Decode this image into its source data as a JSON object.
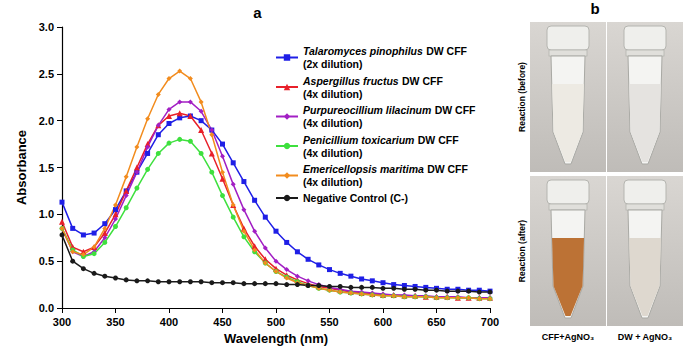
{
  "chart_data": {
    "type": "line",
    "title": "a",
    "x_label": "Wavelength (nm)",
    "y_label": "Absorbance",
    "x": [
      300,
      310,
      320,
      330,
      340,
      350,
      360,
      370,
      380,
      390,
      400,
      410,
      420,
      430,
      440,
      450,
      460,
      470,
      480,
      490,
      500,
      510,
      520,
      530,
      540,
      550,
      560,
      570,
      580,
      590,
      600,
      610,
      620,
      630,
      640,
      650,
      660,
      670,
      680,
      690,
      700
    ],
    "xlim": [
      300,
      700
    ],
    "xticks": [
      300,
      350,
      400,
      450,
      500,
      550,
      600,
      650,
      700
    ],
    "ylim": [
      0,
      3
    ],
    "yticks": [
      {
        "value": 0,
        "label": "0.0"
      },
      {
        "value": 0.5,
        "label": "0.5"
      },
      {
        "value": 1,
        "label": "1.0"
      },
      {
        "value": 1.5,
        "label": "1.5"
      },
      {
        "value": 2,
        "label": "2.0"
      },
      {
        "value": 2.5,
        "label": "2.5"
      },
      {
        "value": 3,
        "label": "3.0"
      }
    ],
    "grid": false,
    "legend": "upper right",
    "series": [
      {
        "name": "Talaromyces pinophilus DW CFF (2x dilution)",
        "color": "#1f1fe6",
        "marker": "square",
        "values": [
          1.13,
          0.85,
          0.78,
          0.8,
          0.9,
          1.05,
          1.25,
          1.45,
          1.65,
          1.85,
          1.97,
          2.03,
          2.05,
          2.0,
          1.9,
          1.75,
          1.55,
          1.35,
          1.15,
          0.97,
          0.82,
          0.7,
          0.6,
          0.52,
          0.46,
          0.41,
          0.37,
          0.34,
          0.31,
          0.29,
          0.27,
          0.25,
          0.24,
          0.23,
          0.22,
          0.21,
          0.2,
          0.2,
          0.19,
          0.19,
          0.18
        ]
      },
      {
        "name": "Aspergillus fructus DW CFF (4x dilution)",
        "color": "#e8202a",
        "marker": "triangle",
        "values": [
          0.92,
          0.65,
          0.6,
          0.65,
          0.8,
          1.0,
          1.25,
          1.5,
          1.75,
          1.95,
          2.05,
          2.08,
          2.05,
          1.9,
          1.65,
          1.38,
          1.1,
          0.85,
          0.66,
          0.52,
          0.42,
          0.35,
          0.3,
          0.26,
          0.23,
          0.21,
          0.19,
          0.17,
          0.16,
          0.15,
          0.14,
          0.14,
          0.13,
          0.13,
          0.12,
          0.12,
          0.12,
          0.11,
          0.11,
          0.11,
          0.11
        ]
      },
      {
        "name": "Purpureocillium lilacinum DW CFF (4x dilution)",
        "color": "#a21fc4",
        "marker": "diamond",
        "values": [
          0.85,
          0.6,
          0.55,
          0.6,
          0.75,
          0.95,
          1.2,
          1.45,
          1.72,
          1.95,
          2.12,
          2.2,
          2.2,
          2.1,
          1.9,
          1.62,
          1.32,
          1.05,
          0.82,
          0.64,
          0.5,
          0.41,
          0.34,
          0.29,
          0.25,
          0.22,
          0.2,
          0.18,
          0.17,
          0.16,
          0.15,
          0.14,
          0.14,
          0.13,
          0.13,
          0.12,
          0.12,
          0.12,
          0.11,
          0.11,
          0.11
        ]
      },
      {
        "name": "Penicillium toxicarium DW CFF (4x dilution)",
        "color": "#3ee03e",
        "marker": "circle",
        "values": [
          0.85,
          0.62,
          0.55,
          0.58,
          0.7,
          0.87,
          1.07,
          1.28,
          1.48,
          1.65,
          1.76,
          1.8,
          1.78,
          1.65,
          1.45,
          1.2,
          0.97,
          0.76,
          0.6,
          0.48,
          0.39,
          0.33,
          0.28,
          0.24,
          0.21,
          0.19,
          0.17,
          0.16,
          0.15,
          0.14,
          0.13,
          0.13,
          0.12,
          0.12,
          0.12,
          0.11,
          0.11,
          0.11,
          0.11,
          0.1,
          0.1
        ]
      },
      {
        "name": "Emericellopsis maritima DW CFF (4x dilution)",
        "color": "#f28c1e",
        "marker": "diamond",
        "values": [
          0.85,
          0.6,
          0.57,
          0.65,
          0.85,
          1.1,
          1.4,
          1.72,
          2.02,
          2.28,
          2.45,
          2.53,
          2.45,
          2.2,
          1.85,
          1.45,
          1.1,
          0.82,
          0.62,
          0.48,
          0.39,
          0.32,
          0.27,
          0.24,
          0.21,
          0.19,
          0.17,
          0.16,
          0.15,
          0.14,
          0.13,
          0.13,
          0.12,
          0.12,
          0.12,
          0.11,
          0.11,
          0.11,
          0.11,
          0.1,
          0.1
        ]
      },
      {
        "name": "Negative Control (C-)",
        "color": "#1a1a1a",
        "marker": "circle",
        "values": [
          0.78,
          0.5,
          0.42,
          0.37,
          0.34,
          0.32,
          0.3,
          0.29,
          0.29,
          0.28,
          0.28,
          0.28,
          0.28,
          0.28,
          0.27,
          0.27,
          0.27,
          0.26,
          0.26,
          0.26,
          0.26,
          0.25,
          0.25,
          0.24,
          0.24,
          0.23,
          0.23,
          0.22,
          0.22,
          0.22,
          0.21,
          0.21,
          0.2,
          0.2,
          0.19,
          0.19,
          0.18,
          0.18,
          0.18,
          0.17,
          0.17
        ]
      }
    ]
  },
  "panel_b": {
    "title": "b",
    "row_labels": [
      "Reaction (before)",
      "Reaction (after)"
    ],
    "column_labels": [
      "CFF+AgNO₃",
      "DW + AgNO₃"
    ]
  }
}
